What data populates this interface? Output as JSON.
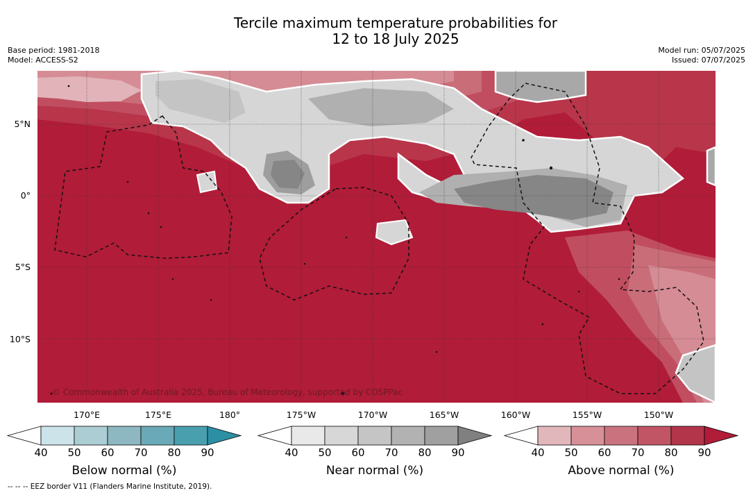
{
  "title_line1": "Tercile maximum temperature probabilities for",
  "title_line2": "12 to 18 July 2025",
  "base_period": "Base period: 1981-2018",
  "model": "Model: ACCESS-S2",
  "model_run": "Model run: 05/07/2025",
  "issued": "Issued: 07/07/2025",
  "copyright": "© Commonwealth of Australia 2025, Bureau of Meteorology, supported by COSPPac",
  "eez_note": "--  --  -- EEZ border V11 (Flanders Marine Institute, 2019).",
  "lat_ticks": [
    "5°N",
    "0°",
    "5°S",
    "10°S"
  ],
  "lon_ticks": [
    "170°E",
    "175°E",
    "180°",
    "175°W",
    "170°W",
    "165°W",
    "160°W",
    "155°W",
    "150°W"
  ],
  "colorbars": [
    {
      "label": "Below normal (%)",
      "ticks": [
        "40",
        "50",
        "60",
        "70",
        "80",
        "90"
      ],
      "colors": [
        "#ffffff",
        "#cde3ea",
        "#abcdd3",
        "#8db8c2",
        "#6aa9b7",
        "#4a9fae",
        "#2d8fa3"
      ]
    },
    {
      "label": "Near normal (%)",
      "ticks": [
        "40",
        "50",
        "60",
        "70",
        "80",
        "90"
      ],
      "colors": [
        "#ffffff",
        "#e9e9e9",
        "#d7d7d7",
        "#c5c5c5",
        "#b2b2b2",
        "#a0a0a0",
        "#808080"
      ]
    },
    {
      "label": "Above normal (%)",
      "ticks": [
        "40",
        "50",
        "60",
        "70",
        "80",
        "90"
      ],
      "colors": [
        "#ffffff",
        "#e2b7bc",
        "#d89098",
        "#ca737e",
        "#c15565",
        "#b3354a",
        "#b11c38"
      ]
    }
  ],
  "colors": {
    "above_90": "#b11c38",
    "above_80": "#b8354a",
    "above_70": "#c04e60",
    "above_60": "#c96d79",
    "above_50": "#d58c95",
    "above_40": "#e2b4ba",
    "near_50": "#d6d6d6",
    "near_60": "#c4c4c4",
    "near_70": "#b0b0b0",
    "near_80": "#9e9e9e",
    "near_90": "#868686"
  }
}
